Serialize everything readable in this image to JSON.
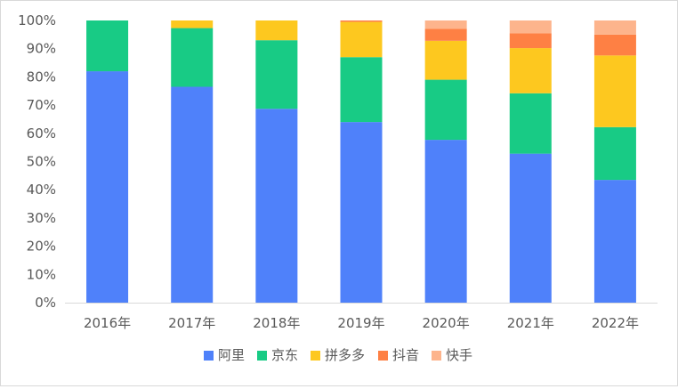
{
  "chart_data": {
    "type": "bar",
    "stacked": true,
    "normalized": true,
    "categories": [
      "2016年",
      "2017年",
      "2018年",
      "2019年",
      "2020年",
      "2021年",
      "2022年"
    ],
    "series": [
      {
        "name": "阿里",
        "color": "#4f81fa",
        "values": [
          82,
          76.5,
          68.7,
          64,
          57.7,
          52.8,
          43.5
        ]
      },
      {
        "name": "京东",
        "color": "#18cb85",
        "values": [
          18,
          20.8,
          24.3,
          23,
          21.3,
          21.4,
          18.7
        ]
      },
      {
        "name": "拼多多",
        "color": "#fdc81f",
        "values": [
          0,
          2.7,
          7,
          12.5,
          13.8,
          16,
          25.4
        ]
      },
      {
        "name": "抖音",
        "color": "#fe8044",
        "values": [
          0,
          0,
          0,
          0.5,
          4.2,
          5.3,
          7.4
        ]
      },
      {
        "name": "快手",
        "color": "#fdb48c",
        "values": [
          0,
          0,
          0,
          0,
          3,
          4.5,
          5
        ]
      }
    ],
    "yticks": [
      "0%",
      "10%",
      "20%",
      "30%",
      "40%",
      "50%",
      "60%",
      "70%",
      "80%",
      "90%",
      "100%"
    ],
    "ylim": [
      0,
      100
    ],
    "grid": false,
    "legend": "bottom"
  }
}
